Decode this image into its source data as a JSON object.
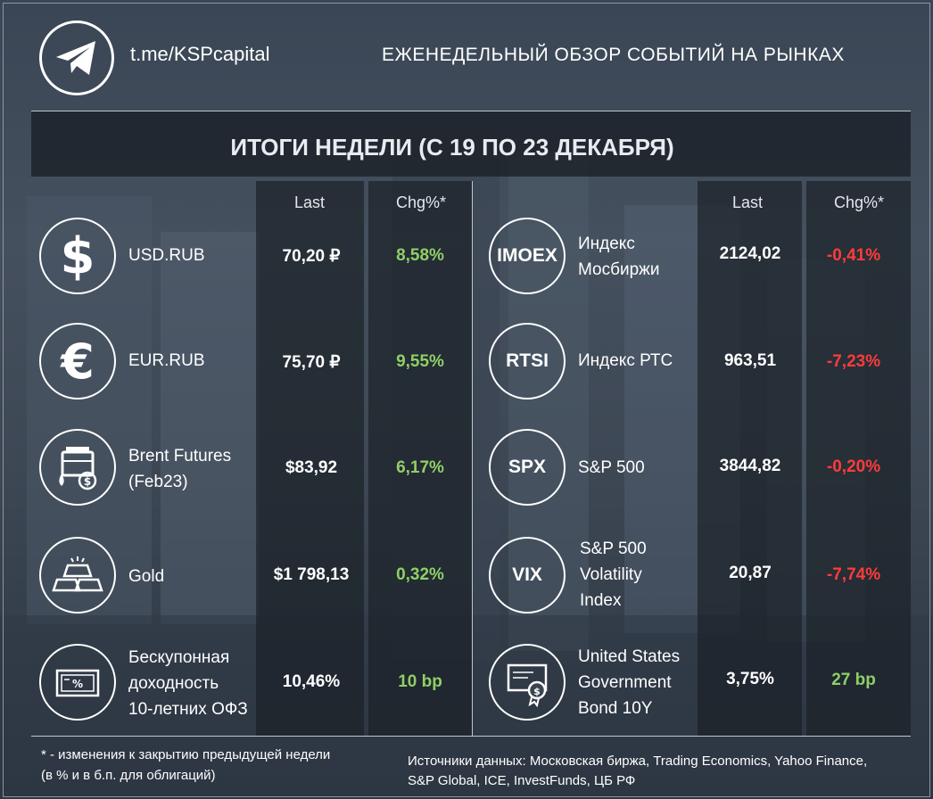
{
  "header": {
    "handle": "t.me/KSPcapital",
    "title": "ЕЖЕНЕДЕЛЬНЫЙ ОБЗОР СОБЫТИЙ НА РЫНКАХ"
  },
  "banner": {
    "title": "ИТОГИ НЕДЕЛИ (С 19 ПО 23 ДЕКАБРЯ)"
  },
  "columns": {
    "last": "Last",
    "chg": "Chg%*"
  },
  "left": [
    {
      "name_lines": [
        "USD.RUB"
      ],
      "last": "70,20 ₽",
      "chg": "8,58%",
      "dir": "pos",
      "icon": "dollar-icon"
    },
    {
      "name_lines": [
        "EUR.RUB"
      ],
      "last": "75,70 ₽",
      "chg": "9,55%",
      "dir": "pos",
      "icon": "euro-icon"
    },
    {
      "name_lines": [
        "Brent Futures",
        "(Feb23)"
      ],
      "last": "$83,92",
      "chg": "6,17%",
      "dir": "pos",
      "icon": "oil-barrel-icon"
    },
    {
      "name_lines": [
        "Gold"
      ],
      "last": "$1 798,13",
      "chg": "0,32%",
      "dir": "pos",
      "icon": "gold-bars-icon"
    },
    {
      "name_lines": [
        "Бескупонная",
        "доходность",
        "10-летних ОФЗ"
      ],
      "last": "10,46%",
      "chg": "10 bp",
      "dir": "pos",
      "icon": "bond-certificate-icon"
    }
  ],
  "right": [
    {
      "icon_text": "IMOEX",
      "name_lines": [
        "Индекс",
        "Мосбиржи"
      ],
      "last": "2124,02",
      "chg": "-0,41%",
      "dir": "neg"
    },
    {
      "icon_text": "RTSI",
      "name_lines": [
        "Индекс РТС"
      ],
      "last": "963,51",
      "chg": "-7,23%",
      "dir": "neg"
    },
    {
      "icon_text": "SPX",
      "name_lines": [
        "S&P 500"
      ],
      "last": "3844,82",
      "chg": "-0,20%",
      "dir": "neg"
    },
    {
      "icon_text": "VIX",
      "name_lines": [
        "S&P 500",
        "Volatility",
        "Index"
      ],
      "last": "20,87",
      "chg": "-7,74%",
      "dir": "neg"
    },
    {
      "icon_text": "",
      "name_lines": [
        "United States",
        "Government",
        "Bond 10Y"
      ],
      "last": "3,75%",
      "chg": "27 bp",
      "dir": "pos",
      "icon": "us-bond-certificate-icon"
    }
  ],
  "footer": {
    "note_lines": [
      "* - изменения к закрытию предыдущей недели",
      "(в % и в б.п. для облигаций)"
    ],
    "sources_lines": [
      "Источники данных: Московская биржа, Trading Economics, Yahoo Finance,",
      "S&P Global, ICE, InvestFunds, ЦБ РФ"
    ]
  },
  "colors": {
    "positive": "#8fcf67",
    "negative": "#ff3b3b",
    "accent": "#ffffff"
  }
}
